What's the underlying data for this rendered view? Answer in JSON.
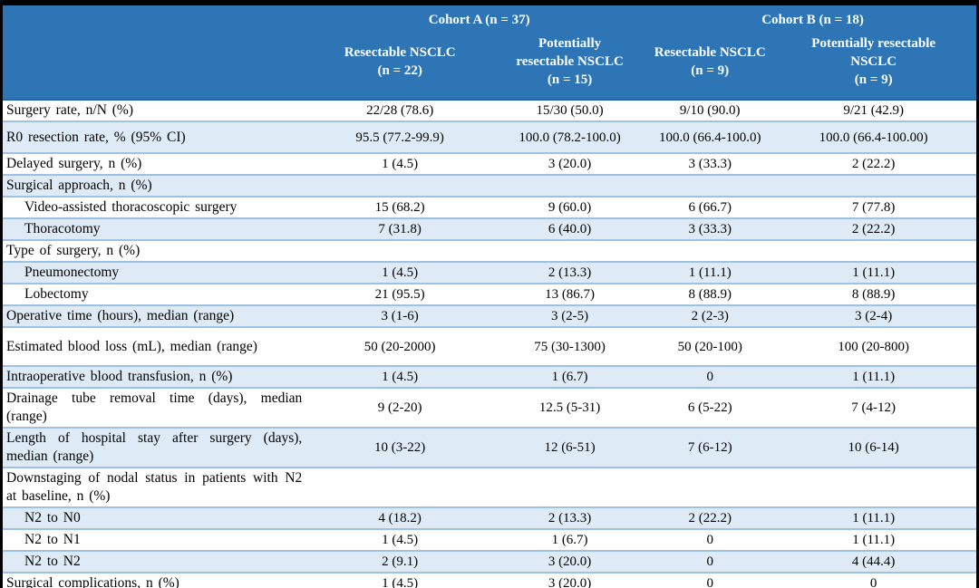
{
  "colors": {
    "frame": "#000000",
    "header_bg": "#2E75B6",
    "header_edge": "#2867A5",
    "header_text": "#FFFFFF",
    "row_alt": "#DEEAF6",
    "grid": "#9CC2E5",
    "body_text": "#000000"
  },
  "table": {
    "cohorts": [
      {
        "label": "Cohort A (n = 37)"
      },
      {
        "label": "Cohort B (n = 18)"
      }
    ],
    "columns": [
      {
        "label": "Resectable NSCLC\n(n = 22)"
      },
      {
        "label": "Potentially\nresectable NSCLC\n(n = 15)"
      },
      {
        "label": "Resectable NSCLC\n(n = 9)"
      },
      {
        "label": "Potentially resectable\nNSCLC\n(n = 9)"
      }
    ],
    "rows": [
      {
        "label": "Surgery rate, n/N (%)",
        "indent": false,
        "values": [
          "22/28 (78.6)",
          "15/30 (50.0)",
          "9/10 (90.0)",
          "9/21 (42.9)"
        ]
      },
      {
        "label": "R0 resection rate, % (95% CI)",
        "indent": false,
        "values": [
          "95.5 (77.2-99.9)",
          "100.0 (78.2-100.0)",
          "100.0 (66.4-100.0)",
          "100.0 (66.4-100.00)"
        ]
      },
      {
        "label": "Delayed surgery, n (%)",
        "indent": false,
        "values": [
          "1 (4.5)",
          "3 (20.0)",
          "3 (33.3)",
          "2 (22.2)"
        ]
      },
      {
        "label": "Surgical approach, n (%)",
        "indent": false,
        "values": [
          "",
          "",
          "",
          ""
        ]
      },
      {
        "label": "Video-assisted thoracoscopic surgery",
        "indent": true,
        "values": [
          "15 (68.2)",
          "9 (60.0)",
          "6 (66.7)",
          "7 (77.8)"
        ]
      },
      {
        "label": "Thoracotomy",
        "indent": true,
        "values": [
          "7 (31.8)",
          "6 (40.0)",
          "3 (33.3)",
          "2 (22.2)"
        ]
      },
      {
        "label": "Type of surgery, n (%)",
        "indent": false,
        "values": [
          "",
          "",
          "",
          ""
        ]
      },
      {
        "label": "Pneumonectomy",
        "indent": true,
        "values": [
          "1 (4.5)",
          "2 (13.3)",
          "1 (11.1)",
          "1 (11.1)"
        ]
      },
      {
        "label": "Lobectomy",
        "indent": true,
        "values": [
          "21 (95.5)",
          "13 (86.7)",
          "8 (88.9)",
          "8 (88.9)"
        ]
      },
      {
        "label": "Operative time (hours), median (range)",
        "indent": false,
        "values": [
          "3 (1-6)",
          "3 (2-5)",
          "2 (2-3)",
          "3 (2-4)"
        ]
      },
      {
        "label": "Estimated blood loss (mL), median (range)",
        "indent": false,
        "values": [
          "50 (20-2000)",
          "75 (30-1300)",
          "50 (20-100)",
          "100 (20-800)"
        ]
      },
      {
        "label": "Intraoperative blood transfusion, n (%)",
        "indent": false,
        "values": [
          "1 (4.5)",
          "1 (6.7)",
          "0",
          "1 (11.1)"
        ]
      },
      {
        "label": "Drainage tube removal time (days), median (range)",
        "indent": false,
        "values": [
          "9 (2-20)",
          "12.5 (5-31)",
          "6 (5-22)",
          "7 (4-12)"
        ]
      },
      {
        "label": "Length of hospital stay after surgery (days), median (range)",
        "indent": false,
        "values": [
          "10 (3-22)",
          "12 (6-51)",
          "7 (6-12)",
          "10 (6-14)"
        ]
      },
      {
        "label": "Downstaging of nodal status in patients with N2 at baseline, n (%)",
        "indent": false,
        "values": [
          "",
          "",
          "",
          ""
        ]
      },
      {
        "label": "N2 to N0",
        "indent": true,
        "values": [
          "4 (18.2)",
          "2 (13.3)",
          "2 (22.2)",
          "1 (11.1)"
        ]
      },
      {
        "label": "N2 to N1",
        "indent": true,
        "values": [
          "1 (4.5)",
          "1 (6.7)",
          "0",
          "1 (11.1)"
        ]
      },
      {
        "label": "N2 to N2",
        "indent": true,
        "values": [
          "2 (9.1)",
          "3 (20.0)",
          "0",
          "4 (44.4)"
        ]
      },
      {
        "label": "Surgical complications, n (%)",
        "indent": false,
        "values": [
          "1 (4.5)",
          "3 (20.0)",
          "0",
          "0"
        ]
      }
    ]
  }
}
